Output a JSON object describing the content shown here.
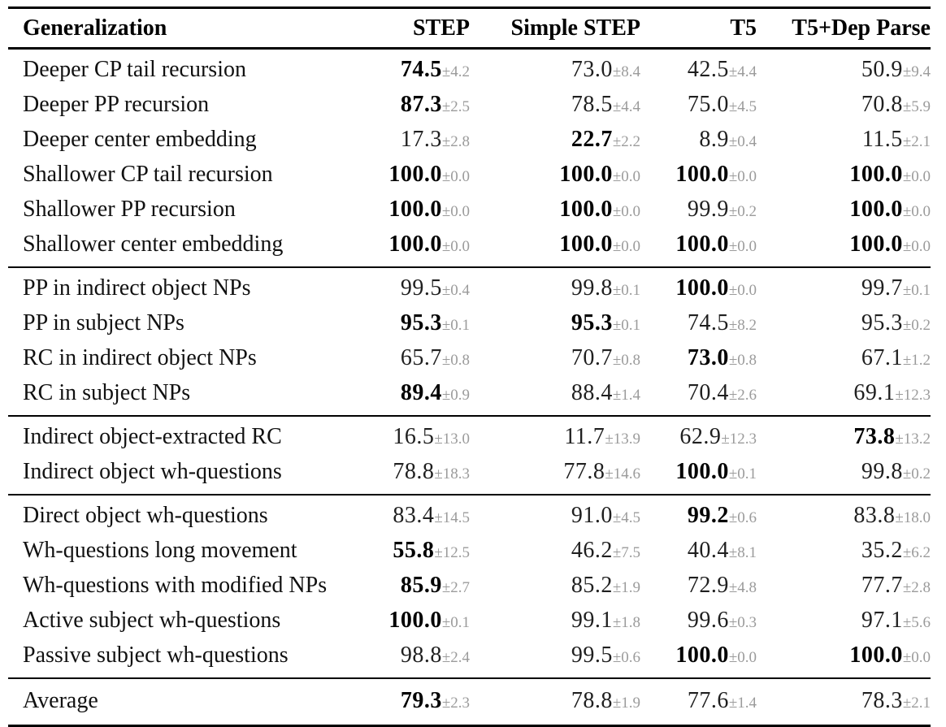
{
  "table": {
    "header": {
      "generalization": "Generalization",
      "columns": [
        "STEP",
        "Simple STEP",
        "T5",
        "T5+Dep Parse"
      ]
    },
    "sections": [
      {
        "name": "recursion-and-embedding",
        "rows": [
          {
            "label": "Deeper CP tail recursion",
            "cells": [
              {
                "value": "74.5",
                "err": "±4.2",
                "bold": true
              },
              {
                "value": "73.0",
                "err": "±8.4",
                "bold": false
              },
              {
                "value": "42.5",
                "err": "±4.4",
                "bold": false
              },
              {
                "value": "50.9",
                "err": "±9.4",
                "bold": false
              }
            ]
          },
          {
            "label": "Deeper PP recursion",
            "cells": [
              {
                "value": "87.3",
                "err": "±2.5",
                "bold": true
              },
              {
                "value": "78.5",
                "err": "±4.4",
                "bold": false
              },
              {
                "value": "75.0",
                "err": "±4.5",
                "bold": false
              },
              {
                "value": "70.8",
                "err": "±5.9",
                "bold": false
              }
            ]
          },
          {
            "label": "Deeper center embedding",
            "cells": [
              {
                "value": "17.3",
                "err": "±2.8",
                "bold": false
              },
              {
                "value": "22.7",
                "err": "±2.2",
                "bold": true
              },
              {
                "value": "8.9",
                "err": "±0.4",
                "bold": false
              },
              {
                "value": "11.5",
                "err": "±2.1",
                "bold": false
              }
            ]
          },
          {
            "label": "Shallower CP tail recursion",
            "cells": [
              {
                "value": "100.0",
                "err": "±0.0",
                "bold": true
              },
              {
                "value": "100.0",
                "err": "±0.0",
                "bold": true
              },
              {
                "value": "100.0",
                "err": "±0.0",
                "bold": true
              },
              {
                "value": "100.0",
                "err": "±0.0",
                "bold": true
              }
            ]
          },
          {
            "label": "Shallower PP recursion",
            "cells": [
              {
                "value": "100.0",
                "err": "±0.0",
                "bold": true
              },
              {
                "value": "100.0",
                "err": "±0.0",
                "bold": true
              },
              {
                "value": "99.9",
                "err": "±0.2",
                "bold": false
              },
              {
                "value": "100.0",
                "err": "±0.0",
                "bold": true
              }
            ]
          },
          {
            "label": "Shallower center embedding",
            "cells": [
              {
                "value": "100.0",
                "err": "±0.0",
                "bold": true
              },
              {
                "value": "100.0",
                "err": "±0.0",
                "bold": true
              },
              {
                "value": "100.0",
                "err": "±0.0",
                "bold": true
              },
              {
                "value": "100.0",
                "err": "±0.0",
                "bold": true
              }
            ]
          }
        ]
      },
      {
        "name": "pp-rc-modifiers",
        "rows": [
          {
            "label": "PP in indirect object NPs",
            "cells": [
              {
                "value": "99.5",
                "err": "±0.4",
                "bold": false
              },
              {
                "value": "99.8",
                "err": "±0.1",
                "bold": false
              },
              {
                "value": "100.0",
                "err": "±0.0",
                "bold": true
              },
              {
                "value": "99.7",
                "err": "±0.1",
                "bold": false
              }
            ]
          },
          {
            "label": "PP in subject NPs",
            "cells": [
              {
                "value": "95.3",
                "err": "±0.1",
                "bold": true
              },
              {
                "value": "95.3",
                "err": "±0.1",
                "bold": true
              },
              {
                "value": "74.5",
                "err": "±8.2",
                "bold": false
              },
              {
                "value": "95.3",
                "err": "±0.2",
                "bold": false
              }
            ]
          },
          {
            "label": "RC in indirect object NPs",
            "cells": [
              {
                "value": "65.7",
                "err": "±0.8",
                "bold": false
              },
              {
                "value": "70.7",
                "err": "±0.8",
                "bold": false
              },
              {
                "value": "73.0",
                "err": "±0.8",
                "bold": true
              },
              {
                "value": "67.1",
                "err": "±1.2",
                "bold": false
              }
            ]
          },
          {
            "label": "RC in subject NPs",
            "cells": [
              {
                "value": "89.4",
                "err": "±0.9",
                "bold": true
              },
              {
                "value": "88.4",
                "err": "±1.4",
                "bold": false
              },
              {
                "value": "70.4",
                "err": "±2.6",
                "bold": false
              },
              {
                "value": "69.1",
                "err": "±12.3",
                "bold": false
              }
            ]
          }
        ]
      },
      {
        "name": "indirect-object-extraction",
        "rows": [
          {
            "label": "Indirect object-extracted RC",
            "cells": [
              {
                "value": "16.5",
                "err": "±13.0",
                "bold": false
              },
              {
                "value": "11.7",
                "err": "±13.9",
                "bold": false
              },
              {
                "value": "62.9",
                "err": "±12.3",
                "bold": false
              },
              {
                "value": "73.8",
                "err": "±13.2",
                "bold": true
              }
            ]
          },
          {
            "label": "Indirect object wh-questions",
            "cells": [
              {
                "value": "78.8",
                "err": "±18.3",
                "bold": false
              },
              {
                "value": "77.8",
                "err": "±14.6",
                "bold": false
              },
              {
                "value": "100.0",
                "err": "±0.1",
                "bold": true
              },
              {
                "value": "99.8",
                "err": "±0.2",
                "bold": false
              }
            ]
          }
        ]
      },
      {
        "name": "wh-questions",
        "rows": [
          {
            "label": "Direct object wh-questions",
            "cells": [
              {
                "value": "83.4",
                "err": "±14.5",
                "bold": false
              },
              {
                "value": "91.0",
                "err": "±4.5",
                "bold": false
              },
              {
                "value": "99.2",
                "err": "±0.6",
                "bold": true
              },
              {
                "value": "83.8",
                "err": "±18.0",
                "bold": false
              }
            ]
          },
          {
            "label": "Wh-questions long movement",
            "cells": [
              {
                "value": "55.8",
                "err": "±12.5",
                "bold": true
              },
              {
                "value": "46.2",
                "err": "±7.5",
                "bold": false
              },
              {
                "value": "40.4",
                "err": "±8.1",
                "bold": false
              },
              {
                "value": "35.2",
                "err": "±6.2",
                "bold": false
              }
            ]
          },
          {
            "label": "Wh-questions with modified NPs",
            "cells": [
              {
                "value": "85.9",
                "err": "±2.7",
                "bold": true
              },
              {
                "value": "85.2",
                "err": "±1.9",
                "bold": false
              },
              {
                "value": "72.9",
                "err": "±4.8",
                "bold": false
              },
              {
                "value": "77.7",
                "err": "±2.8",
                "bold": false
              }
            ]
          },
          {
            "label": "Active subject wh-questions",
            "cells": [
              {
                "value": "100.0",
                "err": "±0.1",
                "bold": true
              },
              {
                "value": "99.1",
                "err": "±1.8",
                "bold": false
              },
              {
                "value": "99.6",
                "err": "±0.3",
                "bold": false
              },
              {
                "value": "97.1",
                "err": "±5.6",
                "bold": false
              }
            ]
          },
          {
            "label": "Passive subject wh-questions",
            "cells": [
              {
                "value": "98.8",
                "err": "±2.4",
                "bold": false
              },
              {
                "value": "99.5",
                "err": "±0.6",
                "bold": false
              },
              {
                "value": "100.0",
                "err": "±0.0",
                "bold": true
              },
              {
                "value": "100.0",
                "err": "±0.0",
                "bold": true
              }
            ]
          }
        ]
      },
      {
        "name": "average",
        "rows": [
          {
            "label": "Average",
            "cells": [
              {
                "value": "79.3",
                "err": "±2.3",
                "bold": true
              },
              {
                "value": "78.8",
                "err": "±1.9",
                "bold": false
              },
              {
                "value": "77.6",
                "err": "±1.4",
                "bold": false
              },
              {
                "value": "78.3",
                "err": "±2.1",
                "bold": false
              }
            ]
          }
        ]
      }
    ]
  },
  "colors": {
    "text": "#111111",
    "value": "#1f1f1f",
    "value_bold": "#000000",
    "error": "#9b9b9b",
    "rule": "#000000",
    "background": "#ffffff"
  }
}
